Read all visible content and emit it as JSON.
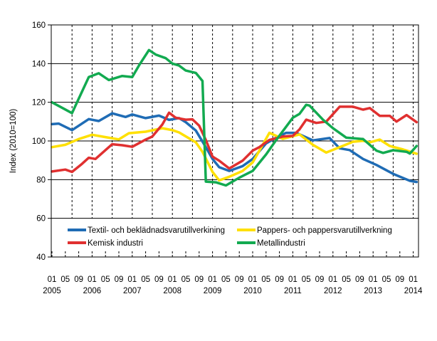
{
  "chart_data": {
    "type": "line",
    "title": "",
    "ylabel": "Index (2010=100)",
    "xlabel": "",
    "ylim": [
      40,
      160
    ],
    "yticks": [
      40,
      60,
      80,
      100,
      120,
      140,
      160
    ],
    "xrange": [
      "2005-01",
      "2014-02"
    ],
    "month_tick_labels": [
      "01",
      "05",
      "09"
    ],
    "year_labels": [
      "2005",
      "2006",
      "2007",
      "2008",
      "2009",
      "2010",
      "2011",
      "2012",
      "2013",
      "2014"
    ],
    "grid": "horizontal solid, vertical dashed every 6 months",
    "legend_placement": "bottom-inside",
    "series": [
      {
        "name": "Textil- och beklädnadsvarutillverkining",
        "color": "#1f6cb5",
        "points": [
          [
            "2005-01",
            108.7
          ],
          [
            "2005-03",
            109
          ],
          [
            "2005-07",
            105.6
          ],
          [
            "2005-12",
            111.3
          ],
          [
            "2006-03",
            110.3
          ],
          [
            "2006-07",
            114.3
          ],
          [
            "2006-11",
            112.4
          ],
          [
            "2007-01",
            113.7
          ],
          [
            "2007-05",
            111.8
          ],
          [
            "2007-09",
            113.1
          ],
          [
            "2007-12",
            110.9
          ],
          [
            "2008-03",
            111.8
          ],
          [
            "2008-05",
            109.7
          ],
          [
            "2008-08",
            105.4
          ],
          [
            "2008-11",
            96.8
          ],
          [
            "2009-01",
            90.7
          ],
          [
            "2009-03",
            86.4
          ],
          [
            "2009-06",
            84.5
          ],
          [
            "2009-10",
            87
          ],
          [
            "2010-01",
            90.7
          ],
          [
            "2010-05",
            98.7
          ],
          [
            "2010-08",
            101.7
          ],
          [
            "2010-11",
            104.2
          ],
          [
            "2011-02",
            104.2
          ],
          [
            "2011-07",
            100.3
          ],
          [
            "2011-12",
            101.5
          ],
          [
            "2012-03",
            96.2
          ],
          [
            "2012-06",
            95.3
          ],
          [
            "2012-10",
            90.7
          ],
          [
            "2013-02",
            87.6
          ],
          [
            "2013-07",
            83
          ],
          [
            "2013-12",
            79.4
          ],
          [
            "2014-02",
            78.8
          ]
        ]
      },
      {
        "name": "Pappers- och pappersvarutillverkning",
        "color": "#ffe000",
        "points": [
          [
            "2005-01",
            96.8
          ],
          [
            "2005-05",
            98
          ],
          [
            "2005-09",
            101
          ],
          [
            "2006-01",
            103.2
          ],
          [
            "2006-05",
            102
          ],
          [
            "2006-09",
            100.8
          ],
          [
            "2006-12",
            104
          ],
          [
            "2007-05",
            104.8
          ],
          [
            "2007-10",
            106.6
          ],
          [
            "2008-01",
            105.6
          ],
          [
            "2008-03",
            104.4
          ],
          [
            "2008-08",
            99.3
          ],
          [
            "2008-10",
            94.4
          ],
          [
            "2009-01",
            84
          ],
          [
            "2009-03",
            79.6
          ],
          [
            "2009-06",
            81.5
          ],
          [
            "2009-10",
            84.5
          ],
          [
            "2010-01",
            88.9
          ],
          [
            "2010-04",
            98
          ],
          [
            "2010-06",
            104.2
          ],
          [
            "2010-10",
            101.1
          ],
          [
            "2011-03",
            103.4
          ],
          [
            "2011-07",
            98
          ],
          [
            "2011-11",
            94
          ],
          [
            "2012-03",
            96.8
          ],
          [
            "2012-07",
            99.6
          ],
          [
            "2012-10",
            100.1
          ],
          [
            "2012-12",
            99.3
          ],
          [
            "2013-03",
            100.7
          ],
          [
            "2013-06",
            97.4
          ],
          [
            "2013-10",
            95.6
          ],
          [
            "2014-02",
            93.4
          ]
        ]
      },
      {
        "name": "Kemisk industri",
        "color": "#e03030",
        "points": [
          [
            "2005-01",
            84.2
          ],
          [
            "2005-05",
            85.2
          ],
          [
            "2005-07",
            84
          ],
          [
            "2005-10",
            88.2
          ],
          [
            "2005-12",
            91.3
          ],
          [
            "2006-02",
            90.7
          ],
          [
            "2006-07",
            98.3
          ],
          [
            "2006-10",
            97.8
          ],
          [
            "2007-01",
            97
          ],
          [
            "2007-05",
            100.7
          ],
          [
            "2007-07",
            102.3
          ],
          [
            "2007-10",
            108.5
          ],
          [
            "2007-12",
            114.6
          ],
          [
            "2008-02",
            112
          ],
          [
            "2008-05",
            111
          ],
          [
            "2008-07",
            111.2
          ],
          [
            "2008-09",
            107.9
          ],
          [
            "2008-11",
            100.5
          ],
          [
            "2009-01",
            91.9
          ],
          [
            "2009-03",
            89.8
          ],
          [
            "2009-06",
            85.8
          ],
          [
            "2009-10",
            89.8
          ],
          [
            "2010-01",
            95
          ],
          [
            "2010-03",
            96.8
          ],
          [
            "2010-06",
            100.5
          ],
          [
            "2010-10",
            102.3
          ],
          [
            "2011-01",
            102.6
          ],
          [
            "2011-03",
            106
          ],
          [
            "2011-05",
            111
          ],
          [
            "2011-08",
            109.3
          ],
          [
            "2011-11",
            110
          ],
          [
            "2012-03",
            117.7
          ],
          [
            "2012-07",
            117.7
          ],
          [
            "2012-10",
            116.2
          ],
          [
            "2012-12",
            117
          ],
          [
            "2013-03",
            113
          ],
          [
            "2013-06",
            113
          ],
          [
            "2013-08",
            110
          ],
          [
            "2013-11",
            113.4
          ],
          [
            "2014-02",
            109.7
          ]
        ]
      },
      {
        "name": "Metallindustri",
        "color": "#12aa50",
        "points": [
          [
            "2005-01",
            120
          ],
          [
            "2005-07",
            114.4
          ],
          [
            "2005-12",
            133
          ],
          [
            "2006-03",
            135
          ],
          [
            "2006-06",
            131.5
          ],
          [
            "2006-10",
            133.6
          ],
          [
            "2007-01",
            133
          ],
          [
            "2007-03",
            139
          ],
          [
            "2007-06",
            147
          ],
          [
            "2007-08",
            144.7
          ],
          [
            "2007-11",
            142.8
          ],
          [
            "2008-01",
            140
          ],
          [
            "2008-03",
            139
          ],
          [
            "2008-05",
            136.4
          ],
          [
            "2008-08",
            135.2
          ],
          [
            "2008-10",
            131
          ],
          [
            "2008-11",
            79
          ],
          [
            "2009-02",
            78.6
          ],
          [
            "2009-05",
            77
          ],
          [
            "2009-09",
            81
          ],
          [
            "2010-01",
            84.5
          ],
          [
            "2010-05",
            93
          ],
          [
            "2010-08",
            100.4
          ],
          [
            "2011-01",
            112
          ],
          [
            "2011-03",
            114
          ],
          [
            "2011-05",
            118.7
          ],
          [
            "2011-06",
            118.3
          ],
          [
            "2011-10",
            111
          ],
          [
            "2012-01",
            106.6
          ],
          [
            "2012-05",
            101.7
          ],
          [
            "2012-10",
            101
          ],
          [
            "2013-02",
            95
          ],
          [
            "2013-04",
            93.8
          ],
          [
            "2013-07",
            95.2
          ],
          [
            "2013-11",
            94.4
          ],
          [
            "2013-12",
            93.5
          ],
          [
            "2014-02",
            97.4
          ]
        ]
      }
    ]
  }
}
